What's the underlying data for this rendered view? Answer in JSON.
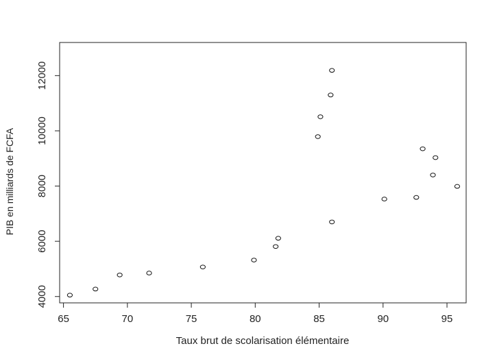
{
  "chart_data": {
    "type": "scatter",
    "title": "",
    "xlabel": "Taux brut de scolarisation élémentaire",
    "ylabel": "PIB en milliards de FCFA",
    "xlim": [
      64.7,
      96.5
    ],
    "ylim": [
      3770,
      13200
    ],
    "x_ticks": [
      65,
      70,
      75,
      80,
      85,
      90,
      95
    ],
    "y_ticks": [
      4000,
      6000,
      8000,
      10000,
      12000
    ],
    "marker": "open-circle",
    "grid": false,
    "points": [
      {
        "x": 65.5,
        "y": 4050
      },
      {
        "x": 67.5,
        "y": 4270
      },
      {
        "x": 69.4,
        "y": 4780
      },
      {
        "x": 71.7,
        "y": 4850
      },
      {
        "x": 75.9,
        "y": 5070
      },
      {
        "x": 79.9,
        "y": 5320
      },
      {
        "x": 81.6,
        "y": 5810
      },
      {
        "x": 81.8,
        "y": 6110
      },
      {
        "x": 84.9,
        "y": 9790
      },
      {
        "x": 85.1,
        "y": 10510
      },
      {
        "x": 85.9,
        "y": 11300
      },
      {
        "x": 86.0,
        "y": 12190
      },
      {
        "x": 86.0,
        "y": 6700
      },
      {
        "x": 90.1,
        "y": 7530
      },
      {
        "x": 92.6,
        "y": 7590
      },
      {
        "x": 93.1,
        "y": 9350
      },
      {
        "x": 93.9,
        "y": 8400
      },
      {
        "x": 94.1,
        "y": 9030
      },
      {
        "x": 95.8,
        "y": 7990
      }
    ]
  }
}
